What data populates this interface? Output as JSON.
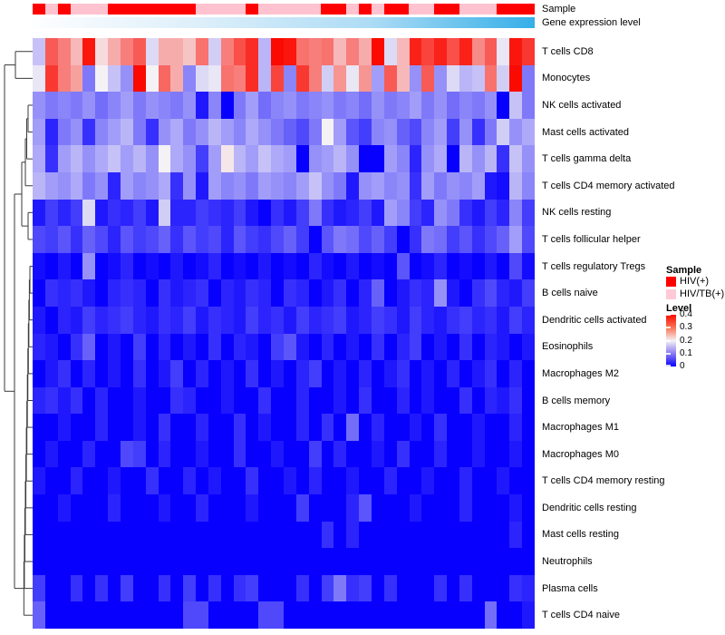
{
  "annotations": {
    "sample": {
      "label": "Sample",
      "colors": {
        "R": "#FF0000",
        "P": "#FFC3CF"
      },
      "pattern": [
        "R",
        "P",
        "R",
        "P",
        "P",
        "P",
        "R",
        "R",
        "R",
        "R",
        "R",
        "R",
        "R",
        "P",
        "P",
        "P",
        "P",
        "R",
        "P",
        "P",
        "P",
        "P",
        "P",
        "R",
        "R",
        "P",
        "R",
        "P",
        "R",
        "R",
        "P",
        "P",
        "R",
        "R",
        "P",
        "P",
        "P",
        "R",
        "R",
        "R"
      ]
    },
    "gene_expression": {
      "label": "Gene expression level",
      "gradient": [
        "#FDFEFF",
        "#DDEFFA",
        "#AEDCF5",
        "#35AFE8"
      ]
    }
  },
  "legend": {
    "sample": {
      "title": "Sample",
      "items": [
        {
          "label": "HIV(+)",
          "color": "#FF0000"
        },
        {
          "label": "HIV/TB(+)",
          "color": "#FFC9D6"
        }
      ]
    },
    "level": {
      "title": "Level",
      "ticks": [
        "0.4",
        "0.3",
        "0.2",
        "0.1",
        "0"
      ],
      "gradient": [
        "#FB0B00",
        "#F97457",
        "#F5F2F5",
        "#8A7CF0",
        "#0800FE"
      ]
    }
  },
  "chart_data": {
    "type": "heatmap",
    "columns": 40,
    "colormap": {
      "domain": [
        0,
        0.2,
        0.4
      ],
      "colors": [
        "#0800FE",
        "#F5F2F5",
        "#FA0A00"
      ]
    },
    "rows": [
      "T cells CD8",
      "Monocytes",
      "NK cells activated",
      "Mast cells activated",
      "T cells gamma delta",
      "T cells CD4 memory activated",
      "NK cells resting",
      "T cells follicular helper",
      "T cells regulatory  Tregs",
      "B cells naive",
      "Dendritic cells activated",
      "Eosinophils",
      "Macrophages M2",
      "B cells memory",
      "Macrophages M1",
      "Macrophages M0",
      "T cells CD4 memory resting",
      "Dendritic cells resting",
      "Mast cells resting",
      "Neutrophils",
      "Plasma cells",
      "T cells CD4 naive"
    ],
    "values": [
      [
        0.16,
        0.33,
        0.3,
        0.25,
        0.39,
        0.22,
        0.26,
        0.3,
        0.33,
        0.18,
        0.26,
        0.26,
        0.24,
        0.31,
        0.17,
        0.3,
        0.34,
        0.37,
        0.15,
        0.4,
        0.39,
        0.31,
        0.3,
        0.31,
        0.25,
        0.3,
        0.26,
        0.4,
        0.18,
        0.25,
        0.38,
        0.35,
        0.38,
        0.34,
        0.38,
        0.29,
        0.33,
        0.19,
        0.39,
        0.36
      ],
      [
        0.19,
        0.36,
        0.3,
        0.27,
        0.1,
        0.2,
        0.16,
        0.12,
        0.4,
        0.2,
        0.32,
        0.26,
        0.11,
        0.18,
        0.19,
        0.31,
        0.3,
        0.37,
        0.15,
        0.35,
        0.11,
        0.36,
        0.3,
        0.17,
        0.28,
        0.19,
        0.28,
        0.13,
        0.33,
        0.25,
        0.12,
        0.33,
        0.12,
        0.18,
        0.15,
        0.16,
        0.31,
        0.17,
        0.4,
        0.1
      ],
      [
        0.12,
        0.1,
        0.11,
        0.1,
        0.12,
        0.09,
        0.11,
        0.13,
        0.1,
        0.12,
        0.11,
        0.1,
        0.12,
        0.02,
        0.11,
        0.0,
        0.1,
        0.13,
        0.09,
        0.11,
        0.12,
        0.1,
        0.11,
        0.12,
        0.1,
        0.11,
        0.09,
        0.12,
        0.1,
        0.11,
        0.13,
        0.1,
        0.12,
        0.09,
        0.11,
        0.1,
        0.12,
        0.0,
        0.16,
        0.1
      ],
      [
        0.13,
        0.03,
        0.1,
        0.12,
        0.04,
        0.11,
        0.13,
        0.15,
        0.1,
        0.04,
        0.12,
        0.14,
        0.1,
        0.12,
        0.15,
        0.13,
        0.11,
        0.14,
        0.12,
        0.1,
        0.08,
        0.06,
        0.1,
        0.2,
        0.13,
        0.07,
        0.05,
        0.11,
        0.12,
        0.08,
        0.06,
        0.11,
        0.13,
        0.05,
        0.12,
        0.04,
        0.1,
        0.17,
        0.12,
        0.14
      ],
      [
        0.14,
        0.04,
        0.13,
        0.15,
        0.12,
        0.14,
        0.16,
        0.13,
        0.15,
        0.12,
        0.2,
        0.14,
        0.12,
        0.05,
        0.13,
        0.21,
        0.15,
        0.13,
        0.16,
        0.14,
        0.13,
        0.0,
        0.12,
        0.13,
        0.15,
        0.12,
        0.0,
        0.0,
        0.13,
        0.11,
        0.03,
        0.12,
        0.14,
        0.0,
        0.15,
        0.12,
        0.15,
        0.04,
        0.16,
        0.12
      ],
      [
        0.15,
        0.13,
        0.12,
        0.14,
        0.1,
        0.12,
        0.03,
        0.13,
        0.11,
        0.12,
        0.14,
        0.04,
        0.12,
        0.02,
        0.13,
        0.11,
        0.12,
        0.1,
        0.13,
        0.12,
        0.11,
        0.13,
        0.16,
        0.12,
        0.1,
        0.02,
        0.12,
        0.13,
        0.11,
        0.12,
        0.04,
        0.13,
        0.1,
        0.12,
        0.11,
        0.13,
        0.02,
        0.01,
        0.15,
        0.11
      ],
      [
        0.02,
        0.05,
        0.03,
        0.05,
        0.18,
        0.02,
        0.04,
        0.03,
        0.05,
        0.02,
        0.17,
        0.03,
        0.03,
        0.05,
        0.04,
        0.03,
        0.05,
        0.02,
        0.0,
        0.04,
        0.02,
        0.05,
        0.1,
        0.04,
        0.02,
        0.03,
        0.05,
        0.02,
        0.13,
        0.11,
        0.05,
        0.03,
        0.12,
        0.1,
        0.04,
        0.02,
        0.05,
        0.03,
        0.11,
        0.05
      ],
      [
        0.06,
        0.05,
        0.07,
        0.04,
        0.08,
        0.06,
        0.03,
        0.07,
        0.05,
        0.06,
        0.08,
        0.04,
        0.07,
        0.05,
        0.06,
        0.03,
        0.07,
        0.05,
        0.04,
        0.06,
        0.08,
        0.05,
        0.0,
        0.07,
        0.1,
        0.09,
        0.06,
        0.08,
        0.05,
        0.0,
        0.04,
        0.1,
        0.09,
        0.05,
        0.07,
        0.04,
        0.06,
        0.08,
        0.13,
        0.06
      ],
      [
        0.01,
        0.0,
        0.02,
        0.0,
        0.12,
        0.0,
        0.01,
        0.03,
        0.0,
        0.01,
        0.0,
        0.02,
        0.0,
        0.01,
        0.03,
        0.0,
        0.01,
        0.0,
        0.02,
        0.0,
        0.01,
        0.0,
        0.03,
        0.01,
        0.0,
        0.02,
        0.0,
        0.01,
        0.0,
        0.07,
        0.0,
        0.01,
        0.03,
        0.0,
        0.01,
        0.0,
        0.02,
        0.0,
        0.06,
        0.01
      ],
      [
        0.0,
        0.04,
        0.03,
        0.04,
        0.02,
        0.0,
        0.03,
        0.04,
        0.03,
        0.0,
        0.04,
        0.02,
        0.03,
        0.04,
        0.0,
        0.03,
        0.02,
        0.04,
        0.03,
        0.0,
        0.04,
        0.03,
        0.0,
        0.02,
        0.04,
        0.0,
        0.03,
        0.08,
        0.0,
        0.02,
        0.04,
        0.03,
        0.12,
        0.02,
        0.0,
        0.04,
        0.06,
        0.03,
        0.02,
        0.05
      ],
      [
        0.02,
        0.0,
        0.03,
        0.02,
        0.05,
        0.03,
        0.04,
        0.05,
        0.03,
        0.02,
        0.04,
        0.03,
        0.05,
        0.02,
        0.04,
        0.03,
        0.02,
        0.05,
        0.03,
        0.04,
        0.02,
        0.05,
        0.03,
        0.04,
        0.05,
        0.02,
        0.03,
        0.05,
        0.04,
        0.02,
        0.05,
        0.03,
        0.02,
        0.04,
        0.05,
        0.03,
        0.04,
        0.02,
        0.05,
        0.03
      ],
      [
        0.03,
        0.02,
        0.0,
        0.04,
        0.08,
        0.0,
        0.02,
        0.0,
        0.05,
        0.0,
        0.03,
        0.0,
        0.02,
        0.0,
        0.04,
        0.0,
        0.03,
        0.02,
        0.0,
        0.05,
        0.07,
        0.02,
        0.0,
        0.03,
        0.0,
        0.02,
        0.0,
        0.04,
        0.0,
        0.03,
        0.05,
        0.0,
        0.02,
        0.0,
        0.04,
        0.0,
        0.03,
        0.02,
        0.0,
        0.02
      ],
      [
        0.0,
        0.02,
        0.04,
        0.0,
        0.03,
        0.0,
        0.02,
        0.0,
        0.04,
        0.0,
        0.02,
        0.05,
        0.0,
        0.03,
        0.0,
        0.02,
        0.0,
        0.04,
        0.0,
        0.02,
        0.0,
        0.03,
        0.05,
        0.0,
        0.02,
        0.0,
        0.03,
        0.0,
        0.02,
        0.04,
        0.0,
        0.02,
        0.0,
        0.03,
        0.0,
        0.02,
        0.04,
        0.0,
        0.03,
        0.0
      ],
      [
        0.03,
        0.04,
        0.02,
        0.04,
        0.0,
        0.03,
        0.0,
        0.0,
        0.02,
        0.0,
        0.0,
        0.04,
        0.03,
        0.0,
        0.0,
        0.02,
        0.0,
        0.0,
        0.04,
        0.0,
        0.0,
        0.03,
        0.0,
        0.0,
        0.02,
        0.0,
        0.04,
        0.0,
        0.0,
        0.03,
        0.0,
        0.02,
        0.0,
        0.0,
        0.04,
        0.0,
        0.03,
        0.02,
        0.04,
        0.0
      ],
      [
        0.0,
        0.0,
        0.02,
        0.0,
        0.0,
        0.03,
        0.0,
        0.0,
        0.02,
        0.0,
        0.04,
        0.0,
        0.0,
        0.03,
        0.0,
        0.0,
        0.04,
        0.0,
        0.02,
        0.0,
        0.0,
        0.03,
        0.0,
        0.04,
        0.0,
        0.09,
        0.0,
        0.03,
        0.0,
        0.0,
        0.02,
        0.0,
        0.04,
        0.0,
        0.0,
        0.02,
        0.0,
        0.0,
        0.03,
        0.0
      ],
      [
        0.0,
        0.02,
        0.0,
        0.0,
        0.03,
        0.0,
        0.0,
        0.06,
        0.05,
        0.0,
        0.03,
        0.0,
        0.0,
        0.02,
        0.0,
        0.0,
        0.04,
        0.0,
        0.0,
        0.02,
        0.0,
        0.0,
        0.05,
        0.0,
        0.03,
        0.0,
        0.0,
        0.02,
        0.0,
        0.04,
        0.0,
        0.0,
        0.03,
        0.0,
        0.0,
        0.02,
        0.0,
        0.0,
        0.02,
        0.0
      ],
      [
        0.02,
        0.0,
        0.0,
        0.03,
        0.0,
        0.0,
        0.02,
        0.0,
        0.0,
        0.04,
        0.0,
        0.0,
        0.03,
        0.0,
        0.02,
        0.0,
        0.0,
        0.04,
        0.0,
        0.0,
        0.02,
        0.0,
        0.03,
        0.0,
        0.0,
        0.02,
        0.0,
        0.0,
        0.03,
        0.0,
        0.0,
        0.02,
        0.0,
        0.0,
        0.03,
        0.0,
        0.0,
        0.02,
        0.0,
        0.0
      ],
      [
        0.0,
        0.0,
        0.02,
        0.0,
        0.0,
        0.0,
        0.03,
        0.0,
        0.0,
        0.0,
        0.02,
        0.0,
        0.0,
        0.03,
        0.0,
        0.0,
        0.0,
        0.02,
        0.0,
        0.0,
        0.0,
        0.05,
        0.0,
        0.0,
        0.0,
        0.03,
        0.07,
        0.0,
        0.0,
        0.0,
        0.02,
        0.0,
        0.0,
        0.0,
        0.03,
        0.0,
        0.0,
        0.0,
        0.02,
        0.0
      ],
      [
        0.0,
        0.0,
        0.0,
        0.0,
        0.0,
        0.0,
        0.0,
        0.0,
        0.0,
        0.0,
        0.0,
        0.0,
        0.0,
        0.0,
        0.0,
        0.0,
        0.0,
        0.0,
        0.0,
        0.0,
        0.0,
        0.0,
        0.0,
        0.04,
        0.0,
        0.03,
        0.0,
        0.0,
        0.0,
        0.0,
        0.0,
        0.0,
        0.0,
        0.0,
        0.0,
        0.0,
        0.0,
        0.0,
        0.03,
        0.0
      ],
      [
        0.0,
        0.0,
        0.0,
        0.0,
        0.0,
        0.0,
        0.0,
        0.0,
        0.0,
        0.0,
        0.0,
        0.0,
        0.0,
        0.0,
        0.0,
        0.0,
        0.0,
        0.0,
        0.0,
        0.0,
        0.0,
        0.0,
        0.0,
        0.0,
        0.0,
        0.0,
        0.0,
        0.0,
        0.0,
        0.0,
        0.0,
        0.0,
        0.0,
        0.0,
        0.0,
        0.0,
        0.0,
        0.0,
        0.0,
        0.0
      ],
      [
        0.05,
        0.0,
        0.0,
        0.04,
        0.0,
        0.04,
        0.0,
        0.05,
        0.0,
        0.0,
        0.04,
        0.0,
        0.05,
        0.0,
        0.04,
        0.0,
        0.04,
        0.05,
        0.0,
        0.0,
        0.0,
        0.04,
        0.0,
        0.05,
        0.1,
        0.04,
        0.05,
        0.0,
        0.04,
        0.0,
        0.0,
        0.0,
        0.04,
        0.0,
        0.04,
        0.0,
        0.0,
        0.0,
        0.04,
        0.03
      ],
      [
        0.08,
        0.0,
        0.0,
        0.0,
        0.0,
        0.0,
        0.0,
        0.0,
        0.0,
        0.0,
        0.0,
        0.0,
        0.06,
        0.06,
        0.0,
        0.0,
        0.0,
        0.0,
        0.06,
        0.06,
        0.0,
        0.0,
        0.0,
        0.0,
        0.0,
        0.0,
        0.0,
        0.0,
        0.0,
        0.0,
        0.0,
        0.0,
        0.0,
        0.0,
        0.0,
        0.0,
        0.09,
        0.0,
        0.0,
        0.02
      ]
    ]
  }
}
